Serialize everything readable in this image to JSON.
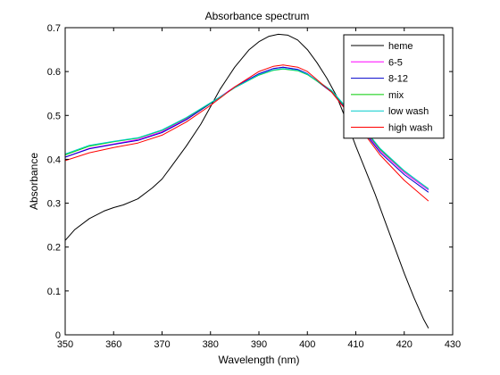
{
  "chart_data": {
    "type": "line",
    "title": "Absorbance spectrum",
    "xlabel": "Wavelength (nm)",
    "ylabel": "Absorbance",
    "xlim": [
      350,
      430
    ],
    "ylim": [
      0,
      0.7
    ],
    "xticks": [
      350,
      360,
      370,
      380,
      390,
      400,
      410,
      420,
      430
    ],
    "yticks": [
      0,
      0.1,
      0.2,
      0.3,
      0.4,
      0.5,
      0.6,
      0.7
    ],
    "grid": false,
    "legend_position": "top-right",
    "series": [
      {
        "name": "heme",
        "color": "#000000",
        "x": [
          350,
          352,
          355,
          358,
          360,
          362,
          365,
          368,
          370,
          372,
          375,
          378,
          380,
          382,
          385,
          388,
          390,
          392,
          394,
          396,
          398,
          400,
          402,
          404,
          406,
          408,
          410,
          412,
          414,
          416,
          418,
          420,
          422,
          424,
          425
        ],
        "y": [
          0.215,
          0.24,
          0.265,
          0.282,
          0.29,
          0.296,
          0.31,
          0.335,
          0.355,
          0.385,
          0.43,
          0.48,
          0.52,
          0.56,
          0.61,
          0.65,
          0.668,
          0.68,
          0.685,
          0.683,
          0.672,
          0.65,
          0.62,
          0.585,
          0.545,
          0.49,
          0.43,
          0.375,
          0.32,
          0.26,
          0.2,
          0.14,
          0.085,
          0.035,
          0.015
        ]
      },
      {
        "name": "6-5",
        "color": "#ff00ff",
        "x": [
          350,
          355,
          360,
          365,
          370,
          375,
          380,
          385,
          390,
          393,
          395,
          398,
          400,
          405,
          410,
          415,
          420,
          425
        ],
        "y": [
          0.405,
          0.425,
          0.435,
          0.445,
          0.463,
          0.492,
          0.528,
          0.565,
          0.595,
          0.607,
          0.61,
          0.605,
          0.595,
          0.555,
          0.49,
          0.42,
          0.37,
          0.33
        ]
      },
      {
        "name": "8-12",
        "color": "#0000cc",
        "x": [
          350,
          355,
          360,
          365,
          370,
          375,
          380,
          385,
          390,
          393,
          395,
          398,
          400,
          405,
          410,
          415,
          420,
          425
        ],
        "y": [
          0.405,
          0.424,
          0.434,
          0.443,
          0.461,
          0.49,
          0.527,
          0.564,
          0.595,
          0.607,
          0.61,
          0.605,
          0.595,
          0.553,
          0.487,
          0.416,
          0.365,
          0.325
        ]
      },
      {
        "name": "mix",
        "color": "#00cc00",
        "x": [
          350,
          355,
          360,
          365,
          370,
          375,
          380,
          385,
          390,
          393,
          395,
          398,
          400,
          405,
          410,
          415,
          420,
          425
        ],
        "y": [
          0.41,
          0.43,
          0.44,
          0.448,
          0.466,
          0.494,
          0.528,
          0.563,
          0.592,
          0.603,
          0.606,
          0.602,
          0.593,
          0.556,
          0.492,
          0.423,
          0.373,
          0.333
        ]
      },
      {
        "name": "low wash",
        "color": "#00cccc",
        "x": [
          350,
          355,
          360,
          365,
          370,
          375,
          380,
          385,
          390,
          393,
          395,
          398,
          400,
          405,
          410,
          415,
          420,
          425
        ],
        "y": [
          0.412,
          0.432,
          0.441,
          0.449,
          0.467,
          0.495,
          0.529,
          0.563,
          0.593,
          0.604,
          0.607,
          0.603,
          0.594,
          0.557,
          0.494,
          0.425,
          0.374,
          0.332
        ]
      },
      {
        "name": "high wash",
        "color": "#ff0000",
        "x": [
          350,
          355,
          360,
          365,
          370,
          375,
          380,
          385,
          390,
          393,
          395,
          398,
          400,
          405,
          410,
          415,
          420,
          425
        ],
        "y": [
          0.397,
          0.415,
          0.427,
          0.437,
          0.455,
          0.485,
          0.523,
          0.565,
          0.6,
          0.612,
          0.615,
          0.61,
          0.6,
          0.553,
          0.484,
          0.41,
          0.352,
          0.305
        ]
      }
    ]
  }
}
